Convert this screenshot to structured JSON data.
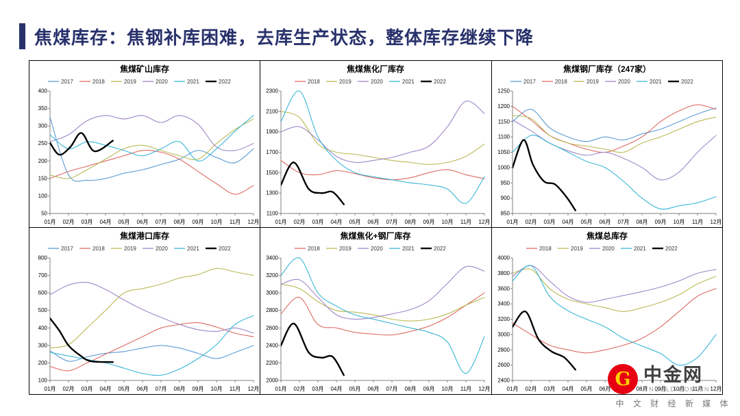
{
  "header": {
    "title": "焦煤库存：焦钢补库困难，去库生产状态，整体库存继续下降",
    "accent_color": "#28316B"
  },
  "months": [
    "01月",
    "02月",
    "03月",
    "04月",
    "05月",
    "06月",
    "07月",
    "08月",
    "09月",
    "10月",
    "11月",
    "12月"
  ],
  "logo": {
    "brand": "中金网",
    "domain": "CNGOLD.COM.CN",
    "tagline": "中 文 财 经 新 媒 体",
    "icon_letter": "G",
    "circle_color": "#E60012"
  },
  "chart_data": [
    {
      "type": "line",
      "title": "焦煤矿山库存",
      "ylim": [
        50,
        400
      ],
      "ytick_step": 50,
      "grid": false,
      "legend_position": "top",
      "series": [
        {
          "name": "2017",
          "color": "#5B9BD5",
          "x": [
            1,
            2,
            3,
            4,
            5,
            6,
            7,
            8,
            9,
            10,
            11,
            12
          ],
          "values": [
            325,
            160,
            145,
            150,
            165,
            175,
            190,
            205,
            230,
            210,
            195,
            235
          ]
        },
        {
          "name": "2018",
          "color": "#DD6A63",
          "x": [
            1,
            2,
            3,
            4,
            5,
            6,
            7,
            8,
            9,
            10,
            11,
            12
          ],
          "values": [
            150,
            170,
            185,
            200,
            215,
            230,
            225,
            205,
            170,
            135,
            105,
            130
          ]
        },
        {
          "name": "2019",
          "color": "#B9B954",
          "x": [
            1,
            2,
            3,
            4,
            5,
            6,
            7,
            8,
            9,
            10,
            11,
            12
          ],
          "values": [
            160,
            150,
            175,
            205,
            235,
            245,
            230,
            215,
            205,
            250,
            290,
            320
          ]
        },
        {
          "name": "2020",
          "color": "#9E86C8",
          "x": [
            1,
            2,
            3,
            4,
            5,
            6,
            7,
            8,
            9,
            10,
            11,
            12
          ],
          "values": [
            255,
            275,
            315,
            330,
            320,
            330,
            310,
            330,
            305,
            240,
            230,
            250
          ]
        },
        {
          "name": "2021",
          "color": "#38B6D6",
          "x": [
            1,
            2,
            3,
            4,
            5,
            6,
            7,
            8,
            9,
            10,
            11,
            12
          ],
          "values": [
            275,
            235,
            255,
            245,
            230,
            215,
            235,
            255,
            200,
            235,
            285,
            330
          ]
        },
        {
          "name": "2022",
          "color": "#000000",
          "x": [
            1,
            1.5,
            2.1,
            2.7,
            3.4,
            4.4
          ],
          "values": [
            252,
            218,
            240,
            280,
            228,
            258
          ]
        }
      ]
    },
    {
      "type": "line",
      "title": "焦煤焦化厂库存",
      "ylim": [
        1100,
        2300
      ],
      "ytick_step": 200,
      "grid": false,
      "legend_position": "top",
      "series": [
        {
          "name": "2018",
          "color": "#DD6A63",
          "x": [
            1,
            2,
            3,
            4,
            5,
            6,
            7,
            8,
            9,
            10,
            11,
            12
          ],
          "values": [
            1620,
            1500,
            1480,
            1520,
            1490,
            1450,
            1430,
            1450,
            1500,
            1530,
            1480,
            1440
          ]
        },
        {
          "name": "2019",
          "color": "#B9B954",
          "x": [
            1,
            2,
            3,
            4,
            5,
            6,
            7,
            8,
            9,
            10,
            11,
            12
          ],
          "values": [
            2100,
            2040,
            1780,
            1700,
            1680,
            1650,
            1620,
            1600,
            1580,
            1600,
            1660,
            1780
          ]
        },
        {
          "name": "2020",
          "color": "#9E86C8",
          "x": [
            1,
            2,
            3,
            4,
            5,
            6,
            7,
            8,
            9,
            10,
            11,
            12
          ],
          "values": [
            1900,
            1950,
            1820,
            1660,
            1600,
            1620,
            1650,
            1700,
            1760,
            1950,
            2200,
            2080
          ]
        },
        {
          "name": "2021",
          "color": "#38B6D6",
          "x": [
            1,
            2,
            3,
            4,
            5,
            6,
            7,
            8,
            9,
            10,
            11,
            12
          ],
          "values": [
            2000,
            2300,
            1850,
            1620,
            1500,
            1460,
            1430,
            1400,
            1380,
            1340,
            1200,
            1460
          ]
        },
        {
          "name": "2022",
          "color": "#000000",
          "x": [
            1,
            1.7,
            2.5,
            3.2,
            3.8,
            4.4
          ],
          "values": [
            1380,
            1600,
            1340,
            1300,
            1310,
            1190
          ]
        }
      ]
    },
    {
      "type": "line",
      "title": "焦煤钢厂库存（247家）",
      "ylim": [
        850,
        1250
      ],
      "ytick_step": 50,
      "grid": false,
      "legend_position": "top",
      "series": [
        {
          "name": "2017",
          "color": "#5B9BD5",
          "x": [
            1,
            2,
            3,
            4,
            5,
            6,
            7,
            8,
            9,
            10,
            11,
            12
          ],
          "values": [
            1150,
            1190,
            1130,
            1100,
            1085,
            1100,
            1090,
            1110,
            1125,
            1150,
            1175,
            1195
          ]
        },
        {
          "name": "2018",
          "color": "#DD6A63",
          "x": [
            1,
            2,
            3,
            4,
            5,
            6,
            7,
            8,
            9,
            10,
            11,
            12
          ],
          "values": [
            1200,
            1155,
            1105,
            1080,
            1060,
            1050,
            1070,
            1100,
            1150,
            1185,
            1205,
            1190
          ]
        },
        {
          "name": "2019",
          "color": "#B9B954",
          "x": [
            1,
            2,
            3,
            4,
            5,
            6,
            7,
            8,
            9,
            10,
            11,
            12
          ],
          "values": [
            1170,
            1160,
            1105,
            1080,
            1070,
            1060,
            1050,
            1080,
            1100,
            1125,
            1150,
            1165
          ]
        },
        {
          "name": "2020",
          "color": "#9E86C8",
          "x": [
            1,
            2,
            3,
            4,
            5,
            6,
            7,
            8,
            9,
            10,
            11,
            12
          ],
          "values": [
            1155,
            1120,
            1080,
            1055,
            1040,
            1050,
            1030,
            1000,
            960,
            985,
            1050,
            1105
          ]
        },
        {
          "name": "2021",
          "color": "#38B6D6",
          "x": [
            1,
            2,
            3,
            4,
            5,
            6,
            7,
            8,
            9,
            10,
            11,
            12
          ],
          "values": [
            1050,
            1105,
            1080,
            1050,
            1020,
            1000,
            955,
            900,
            865,
            875,
            885,
            905
          ]
        },
        {
          "name": "2022",
          "color": "#000000",
          "x": [
            1,
            1.6,
            2.1,
            2.7,
            3.3,
            3.9,
            4.4
          ],
          "values": [
            1000,
            1090,
            1010,
            955,
            945,
            905,
            860
          ]
        }
      ]
    },
    {
      "type": "line",
      "title": "焦煤港口库存",
      "ylim": [
        100,
        800
      ],
      "ytick_step": 100,
      "grid": false,
      "legend_position": "top",
      "series": [
        {
          "name": "2017",
          "color": "#5B9BD5",
          "x": [
            1,
            2,
            3,
            4,
            5,
            6,
            7,
            8,
            9,
            10,
            11,
            12
          ],
          "values": [
            270,
            210,
            235,
            255,
            265,
            285,
            300,
            285,
            255,
            225,
            260,
            300
          ]
        },
        {
          "name": "2018",
          "color": "#DD6A63",
          "x": [
            1,
            2,
            3,
            4,
            5,
            6,
            7,
            8,
            9,
            10,
            11,
            12
          ],
          "values": [
            180,
            155,
            200,
            250,
            300,
            350,
            400,
            420,
            430,
            405,
            370,
            350
          ]
        },
        {
          "name": "2019",
          "color": "#B9B954",
          "x": [
            1,
            2,
            3,
            4,
            5,
            6,
            7,
            8,
            9,
            10,
            11,
            12
          ],
          "values": [
            285,
            305,
            400,
            500,
            600,
            625,
            650,
            685,
            705,
            740,
            720,
            700
          ]
        },
        {
          "name": "2020",
          "color": "#9E86C8",
          "x": [
            1,
            2,
            3,
            4,
            5,
            6,
            7,
            8,
            9,
            10,
            11,
            12
          ],
          "values": [
            590,
            645,
            660,
            620,
            560,
            505,
            460,
            420,
            390,
            380,
            400,
            370
          ]
        },
        {
          "name": "2021",
          "color": "#38B6D6",
          "x": [
            1,
            2,
            3,
            4,
            5,
            6,
            7,
            8,
            9,
            10,
            11,
            12
          ],
          "values": [
            260,
            240,
            220,
            200,
            170,
            140,
            130,
            165,
            225,
            305,
            420,
            470
          ]
        },
        {
          "name": "2022",
          "color": "#000000",
          "x": [
            1,
            1.5,
            2,
            2.6,
            3.2,
            4.4
          ],
          "values": [
            455,
            385,
            300,
            245,
            210,
            205
          ]
        }
      ]
    },
    {
      "type": "line",
      "title": "焦煤焦化+钢厂库存",
      "ylim": [
        2000,
        3400
      ],
      "ytick_step": 200,
      "grid": false,
      "legend_position": "top",
      "series": [
        {
          "name": "2018",
          "color": "#DD6A63",
          "x": [
            1,
            2,
            3,
            4,
            5,
            6,
            7,
            8,
            9,
            10,
            11,
            12
          ],
          "values": [
            2760,
            2950,
            2640,
            2600,
            2550,
            2530,
            2520,
            2560,
            2620,
            2720,
            2860,
            3000
          ]
        },
        {
          "name": "2019",
          "color": "#B9B954",
          "x": [
            1,
            2,
            3,
            4,
            5,
            6,
            7,
            8,
            9,
            10,
            11,
            12
          ],
          "values": [
            3100,
            3050,
            2900,
            2800,
            2780,
            2750,
            2700,
            2680,
            2700,
            2760,
            2860,
            2950
          ]
        },
        {
          "name": "2020",
          "color": "#9E86C8",
          "x": [
            1,
            2,
            3,
            4,
            5,
            6,
            7,
            8,
            9,
            10,
            11,
            12
          ],
          "values": [
            3100,
            3150,
            2950,
            2750,
            2700,
            2720,
            2760,
            2810,
            2910,
            3110,
            3300,
            3250
          ]
        },
        {
          "name": "2021",
          "color": "#38B6D6",
          "x": [
            1,
            2,
            3,
            4,
            5,
            6,
            7,
            8,
            9,
            10,
            11,
            12
          ],
          "values": [
            3200,
            3400,
            3000,
            2850,
            2750,
            2700,
            2650,
            2600,
            2550,
            2440,
            2080,
            2500
          ]
        },
        {
          "name": "2022",
          "color": "#000000",
          "x": [
            1,
            1.7,
            2.5,
            3.2,
            3.8,
            4.4
          ],
          "values": [
            2400,
            2650,
            2320,
            2260,
            2270,
            2060
          ]
        }
      ]
    },
    {
      "type": "line",
      "title": "焦煤总库存",
      "ylim": [
        2400,
        4000
      ],
      "ytick_step": 200,
      "grid": false,
      "legend_position": "top",
      "series": [
        {
          "name": "2018",
          "color": "#DD6A63",
          "x": [
            1,
            2,
            3,
            4,
            5,
            6,
            7,
            8,
            9,
            10,
            11,
            12
          ],
          "values": [
            3150,
            3000,
            2860,
            2800,
            2760,
            2800,
            2860,
            2950,
            3100,
            3300,
            3500,
            3600
          ]
        },
        {
          "name": "2019",
          "color": "#B9B954",
          "x": [
            1,
            2,
            3,
            4,
            5,
            6,
            7,
            8,
            9,
            10,
            11,
            12
          ],
          "values": [
            3800,
            3850,
            3600,
            3460,
            3400,
            3350,
            3300,
            3350,
            3420,
            3520,
            3660,
            3760
          ]
        },
        {
          "name": "2020",
          "color": "#9E86C8",
          "x": [
            1,
            2,
            3,
            4,
            5,
            6,
            7,
            8,
            9,
            10,
            11,
            12
          ],
          "values": [
            3760,
            3900,
            3700,
            3500,
            3420,
            3460,
            3510,
            3560,
            3620,
            3700,
            3800,
            3850
          ]
        },
        {
          "name": "2021",
          "color": "#38B6D6",
          "x": [
            1,
            2,
            3,
            4,
            5,
            6,
            7,
            8,
            9,
            10,
            11,
            12
          ],
          "values": [
            3700,
            3900,
            3500,
            3310,
            3200,
            3100,
            2950,
            2850,
            2750,
            2600,
            2700,
            3000
          ]
        },
        {
          "name": "2022",
          "color": "#000000",
          "x": [
            1,
            1.7,
            2.4,
            3.1,
            3.8,
            4.4
          ],
          "values": [
            3100,
            3300,
            2940,
            2780,
            2700,
            2540
          ]
        }
      ]
    }
  ]
}
